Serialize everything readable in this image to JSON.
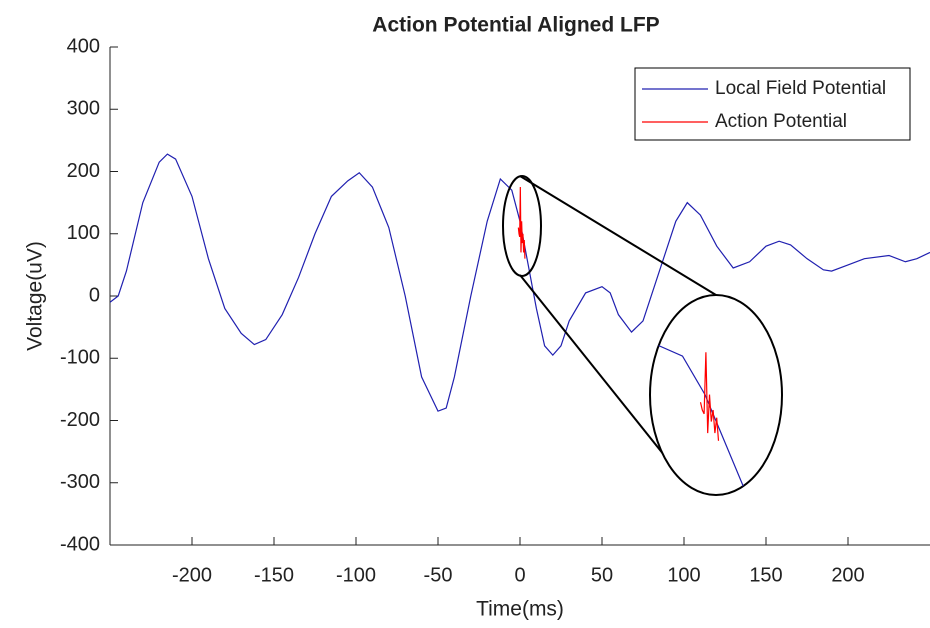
{
  "chart_data": {
    "type": "line",
    "title": "Action Potential Aligned LFP",
    "x_label": "Time(ms)",
    "y_label": "Voltage(uV)",
    "xlim": [
      -250,
      250
    ],
    "ylim": [
      -400,
      400
    ],
    "xticks": [
      -200,
      -150,
      -100,
      -50,
      0,
      50,
      100,
      150,
      200
    ],
    "yticks": [
      -400,
      -300,
      -200,
      -100,
      0,
      100,
      200,
      300,
      400
    ],
    "legend": "upper right",
    "series": [
      {
        "name": "Local Field Potential",
        "color": "#2020b0",
        "x": [
          -250,
          -245,
          -240,
          -230,
          -220,
          -215,
          -210,
          -200,
          -190,
          -180,
          -170,
          -162,
          -155,
          -145,
          -135,
          -125,
          -115,
          -105,
          -98,
          -90,
          -80,
          -70,
          -60,
          -50,
          -45,
          -40,
          -30,
          -20,
          -12,
          -5,
          0,
          5,
          10,
          15,
          20,
          25,
          30,
          40,
          50,
          55,
          60,
          68,
          75,
          85,
          95,
          102,
          110,
          120,
          130,
          140,
          150,
          158,
          165,
          175,
          185,
          190,
          200,
          210,
          225,
          235,
          242,
          250
        ],
        "values": [
          -10,
          0,
          40,
          150,
          215,
          228,
          220,
          160,
          60,
          -20,
          -60,
          -78,
          -70,
          -30,
          30,
          100,
          160,
          185,
          198,
          175,
          110,
          0,
          -130,
          -185,
          -180,
          -130,
          0,
          120,
          188,
          170,
          120,
          50,
          -20,
          -80,
          -95,
          -80,
          -40,
          5,
          15,
          5,
          -30,
          -58,
          -40,
          40,
          120,
          150,
          130,
          80,
          45,
          55,
          80,
          88,
          82,
          60,
          42,
          40,
          50,
          60,
          65,
          55,
          60,
          70
        ]
      },
      {
        "name": "Action Potential",
        "color": "#ff0000",
        "x": [
          -1,
          -0.6,
          -0.2,
          0.2,
          0.6,
          1,
          1.4,
          1.8,
          2.2,
          2.6,
          3
        ],
        "values": [
          110,
          100,
          95,
          175,
          70,
          120,
          85,
          100,
          70,
          90,
          60
        ]
      }
    ]
  }
}
